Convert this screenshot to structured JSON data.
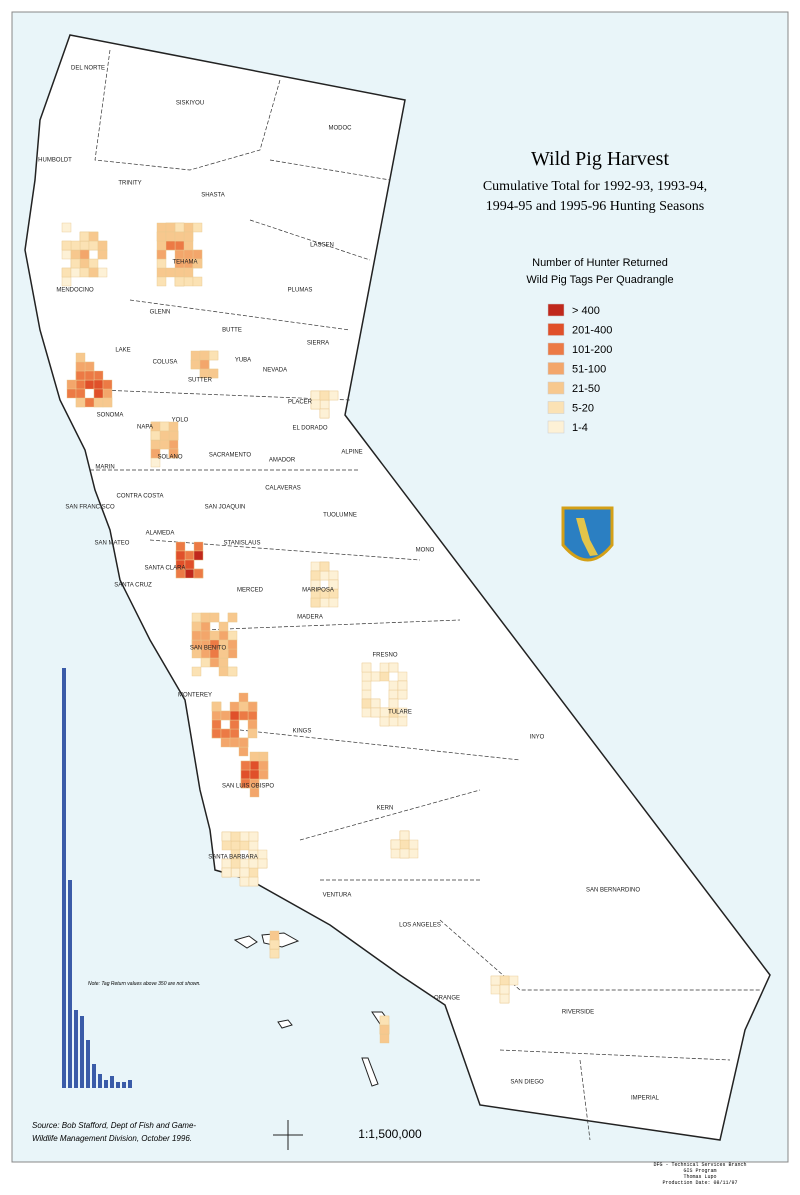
{
  "title": "Wild Pig Harvest",
  "subtitle": [
    "Cumulative Total for 1992-93, 1993-94,",
    "1994-95 and 1995-96 Hunting Seasons"
  ],
  "legend": {
    "title": [
      "Number of Hunter Returned",
      "Wild Pig Tags Per Quadrangle"
    ],
    "items": [
      {
        "label": "> 400",
        "color": "#c0281c"
      },
      {
        "label": "201-400",
        "color": "#e0502a"
      },
      {
        "label": "101-200",
        "color": "#ec7a45"
      },
      {
        "label": "51-100",
        "color": "#f3a66b"
      },
      {
        "label": "21-50",
        "color": "#f7c88e"
      },
      {
        "label": "5-20",
        "color": "#fbe2b4"
      },
      {
        "label": "1-4",
        "color": "#fdf1d6"
      }
    ]
  },
  "counties": [
    "DEL NORTE",
    "SISKIYOU",
    "MODOC",
    "HUMBOLDT",
    "TRINITY",
    "SHASTA",
    "LASSEN",
    "TEHAMA",
    "PLUMAS",
    "MENDOCINO",
    "GLENN",
    "BUTTE",
    "SIERRA",
    "LAKE",
    "COLUSA",
    "YUBA",
    "NEVADA",
    "SUTTER",
    "PLACER",
    "SONOMA",
    "NAPA",
    "YOLO",
    "EL DORADO",
    "ALPINE",
    "SOLANO",
    "SACRAMENTO",
    "AMADOR",
    "MARIN",
    "CALAVERAS",
    "CONTRA COSTA",
    "SAN FRANCISCO",
    "SAN JOAQUIN",
    "TUOLUMNE",
    "ALAMEDA",
    "SAN MATEO",
    "STANISLAUS",
    "MONO",
    "SANTA CLARA",
    "SANTA CRUZ",
    "MARIPOSA",
    "MERCED",
    "MADERA",
    "SAN BENITO",
    "FRESNO",
    "MONTEREY",
    "TULARE",
    "KINGS",
    "INYO",
    "SAN LUIS OBISPO",
    "KERN",
    "SANTA BARBARA",
    "SAN BERNARDINO",
    "VENTURA",
    "LOS ANGELES",
    "ORANGE",
    "RIVERSIDE",
    "SAN DIEGO",
    "IMPERIAL"
  ],
  "histogram": {
    "values": [
      420,
      208,
      78,
      72,
      48,
      24,
      14,
      8,
      12,
      6,
      6,
      8
    ]
  },
  "note": "Note: Tag Return values above 350 are not shown.",
  "source": [
    "Source: Bob Stafford, Dept of Fish and Game-",
    "Wildlife Management Division, October 1996."
  ],
  "scale": "1:1,500,000",
  "credits": [
    "DFG - Technical Services Branch",
    "GIS Program",
    "Thomas Lupo",
    "Production Date: 08/11/97"
  ]
}
